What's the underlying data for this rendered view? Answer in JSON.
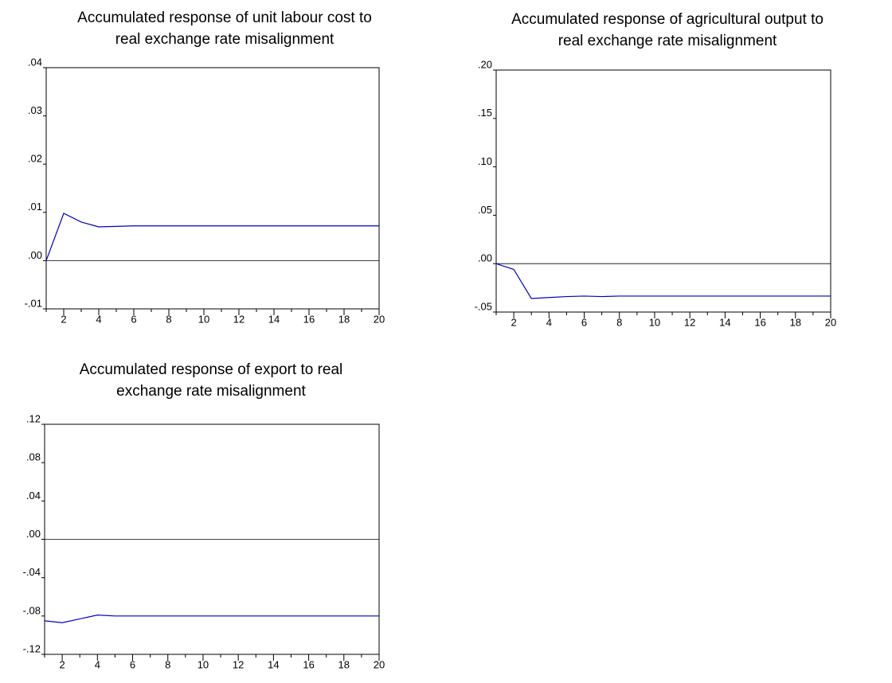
{
  "chart_data": [
    {
      "type": "line",
      "title": [
        "Accumulated response of unit labour cost to",
        "real exchange rate misalignment"
      ],
      "x": [
        1,
        2,
        3,
        4,
        5,
        6,
        7,
        8,
        9,
        10,
        11,
        12,
        13,
        14,
        15,
        16,
        17,
        18,
        19,
        20
      ],
      "series": [
        {
          "color": "#0000cc",
          "values": [
            0,
            0.0098,
            0.008,
            0.007,
            0.0071,
            0.0072,
            0.0072,
            0.0072,
            0.0072,
            0.0072,
            0.0072,
            0.0072,
            0.0072,
            0.0072,
            0.0072,
            0.0072,
            0.0072,
            0.0072,
            0.0072,
            0.0072
          ]
        }
      ],
      "xlim": [
        1,
        20
      ],
      "xticks": [
        2,
        4,
        6,
        8,
        10,
        12,
        14,
        16,
        18,
        20
      ],
      "ylim": [
        -0.01,
        0.04
      ],
      "yticks": [
        {
          "value": -0.01,
          "label": "-.01"
        },
        {
          "value": 0,
          "label": ".00"
        },
        {
          "value": 0.01,
          "label": ".01"
        },
        {
          "value": 0.02,
          "label": ".02"
        },
        {
          "value": 0.03,
          "label": ".03"
        },
        {
          "value": 0.04,
          "label": ".04"
        }
      ]
    },
    {
      "type": "line",
      "title": [
        "Accumulated response of agricultural output to",
        "real exchange rate misalignment"
      ],
      "x": [
        1,
        2,
        3,
        4,
        5,
        6,
        7,
        8,
        9,
        10,
        11,
        12,
        13,
        14,
        15,
        16,
        17,
        18,
        19,
        20
      ],
      "series": [
        {
          "color": "#0000cc",
          "values": [
            0,
            -0.006,
            -0.036,
            -0.035,
            -0.034,
            -0.0335,
            -0.034,
            -0.0335,
            -0.0335,
            -0.0335,
            -0.0335,
            -0.0335,
            -0.0335,
            -0.0335,
            -0.0335,
            -0.0335,
            -0.0335,
            -0.0335,
            -0.0335,
            -0.0335
          ]
        }
      ],
      "xlim": [
        1,
        20
      ],
      "xticks": [
        2,
        4,
        6,
        8,
        10,
        12,
        14,
        16,
        18,
        20
      ],
      "ylim": [
        -0.05,
        0.2
      ],
      "yticks": [
        {
          "value": -0.05,
          "label": "-.05"
        },
        {
          "value": 0,
          "label": ".00"
        },
        {
          "value": 0.05,
          "label": ".05"
        },
        {
          "value": 0.1,
          "label": ".10"
        },
        {
          "value": 0.15,
          "label": ".15"
        },
        {
          "value": 0.2,
          "label": ".20"
        }
      ]
    },
    {
      "type": "line",
      "title": [
        "Accumulated response of export to real",
        "exchange rate misalignment"
      ],
      "x": [
        1,
        2,
        3,
        4,
        5,
        6,
        7,
        8,
        9,
        10,
        11,
        12,
        13,
        14,
        15,
        16,
        17,
        18,
        19,
        20
      ],
      "series": [
        {
          "color": "#0000cc",
          "values": [
            -0.085,
            -0.087,
            -0.083,
            -0.079,
            -0.08,
            -0.08,
            -0.08,
            -0.08,
            -0.08,
            -0.08,
            -0.08,
            -0.08,
            -0.08,
            -0.08,
            -0.08,
            -0.08,
            -0.08,
            -0.08,
            -0.08,
            -0.08
          ]
        }
      ],
      "xlim": [
        1,
        20
      ],
      "xticks": [
        2,
        4,
        6,
        8,
        10,
        12,
        14,
        16,
        18,
        20
      ],
      "ylim": [
        -0.12,
        0.12
      ],
      "yticks": [
        {
          "value": -0.12,
          "label": "-.12"
        },
        {
          "value": -0.08,
          "label": "-.08"
        },
        {
          "value": -0.04,
          "label": "-.04"
        },
        {
          "value": 0,
          "label": ".00"
        },
        {
          "value": 0.04,
          "label": ".04"
        },
        {
          "value": 0.08,
          "label": ".08"
        },
        {
          "value": 0.12,
          "label": ".12"
        }
      ]
    }
  ]
}
